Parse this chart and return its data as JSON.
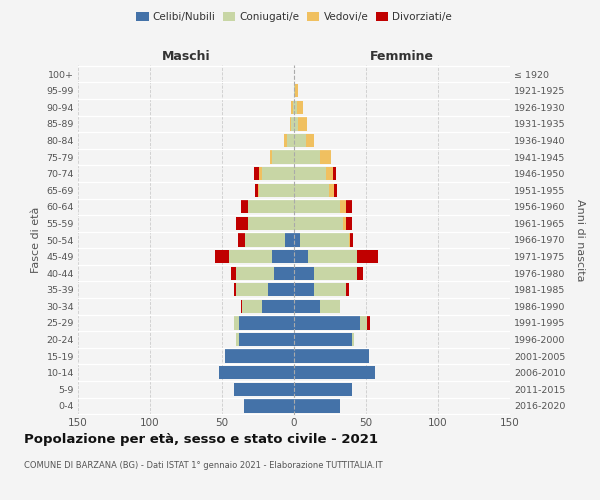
{
  "age_groups": [
    "0-4",
    "5-9",
    "10-14",
    "15-19",
    "20-24",
    "25-29",
    "30-34",
    "35-39",
    "40-44",
    "45-49",
    "50-54",
    "55-59",
    "60-64",
    "65-69",
    "70-74",
    "75-79",
    "80-84",
    "85-89",
    "90-94",
    "95-99",
    "100+"
  ],
  "birth_years": [
    "2016-2020",
    "2011-2015",
    "2006-2010",
    "2001-2005",
    "1996-2000",
    "1991-1995",
    "1986-1990",
    "1981-1985",
    "1976-1980",
    "1971-1975",
    "1966-1970",
    "1961-1965",
    "1956-1960",
    "1951-1955",
    "1946-1950",
    "1941-1945",
    "1936-1940",
    "1931-1935",
    "1926-1930",
    "1921-1925",
    "≤ 1920"
  ],
  "maschi": {
    "celibi": [
      35,
      42,
      52,
      48,
      38,
      38,
      22,
      18,
      14,
      15,
      6,
      0,
      0,
      0,
      0,
      0,
      0,
      0,
      0,
      0,
      0
    ],
    "coniugati": [
      0,
      0,
      0,
      0,
      2,
      4,
      14,
      22,
      26,
      30,
      28,
      32,
      32,
      24,
      22,
      15,
      5,
      2,
      1,
      0,
      0
    ],
    "vedovi": [
      0,
      0,
      0,
      0,
      0,
      0,
      0,
      0,
      0,
      0,
      0,
      0,
      0,
      1,
      2,
      2,
      2,
      1,
      1,
      0,
      0
    ],
    "divorziati": [
      0,
      0,
      0,
      0,
      0,
      0,
      1,
      2,
      4,
      10,
      5,
      8,
      5,
      2,
      4,
      0,
      0,
      0,
      0,
      0,
      0
    ]
  },
  "femmine": {
    "nubili": [
      32,
      40,
      56,
      52,
      40,
      46,
      18,
      14,
      14,
      10,
      4,
      0,
      0,
      0,
      0,
      0,
      0,
      0,
      0,
      0,
      0
    ],
    "coniugate": [
      0,
      0,
      0,
      0,
      2,
      5,
      14,
      22,
      30,
      34,
      34,
      34,
      32,
      24,
      22,
      18,
      8,
      3,
      2,
      1,
      0
    ],
    "vedove": [
      0,
      0,
      0,
      0,
      0,
      0,
      0,
      0,
      0,
      0,
      1,
      2,
      4,
      4,
      5,
      8,
      6,
      6,
      4,
      2,
      0
    ],
    "divorziate": [
      0,
      0,
      0,
      0,
      0,
      2,
      0,
      2,
      4,
      14,
      2,
      4,
      4,
      2,
      2,
      0,
      0,
      0,
      0,
      0,
      0
    ]
  },
  "xlim": 150,
  "colors": {
    "celibi": "#4472a8",
    "coniugati": "#c8d6a5",
    "vedovi": "#f0c060",
    "divorziati": "#c00000"
  },
  "title": "Popolazione per età, sesso e stato civile - 2021",
  "subtitle": "COMUNE DI BARZANA (BG) - Dati ISTAT 1° gennaio 2021 - Elaborazione TUTTITALIA.IT",
  "ylabel_left": "Fasce di età",
  "ylabel_right": "Anni di nascita",
  "xlabel_left": "Maschi",
  "xlabel_right": "Femmine",
  "bg_color": "#f4f4f4"
}
